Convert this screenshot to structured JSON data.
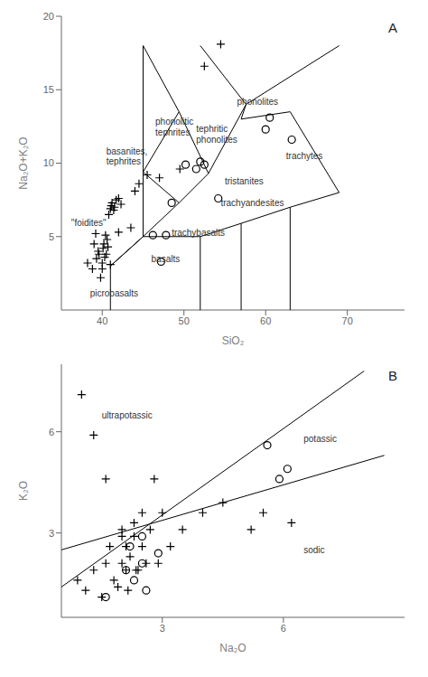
{
  "chart_data": [
    {
      "type": "scatter",
      "title": "A",
      "xlabel": "SiO₂",
      "ylabel": "Na₂O+K₂O",
      "xlim": [
        35,
        77
      ],
      "ylim": [
        0,
        20
      ],
      "xticks": [
        40,
        50,
        60,
        70
      ],
      "yticks": [
        5,
        10,
        15,
        20
      ],
      "grid": false,
      "series": [
        {
          "type": "scatter",
          "marker": "plus",
          "color": "#000000",
          "x": [
            38.2,
            38.8,
            39.0,
            39.2,
            39.3,
            39.5,
            39.6,
            39.8,
            40.0,
            40.0,
            40.1,
            40.2,
            40.3,
            40.4,
            40.5,
            40.6,
            40.7,
            40.8,
            41.0,
            41.0,
            41.1,
            41.2,
            41.4,
            41.5,
            41.7,
            42.0,
            42.0,
            42.3,
            43.5,
            44.0,
            44.5,
            45.5,
            47.0,
            49.5,
            52.5,
            54.5
          ],
          "y": [
            3.2,
            2.8,
            4.5,
            5.2,
            3.5,
            4.0,
            3.8,
            2.2,
            2.8,
            3.2,
            4.2,
            4.5,
            3.6,
            5.1,
            3.8,
            4.8,
            4.3,
            6.5,
            3.1,
            6.9,
            7.1,
            7.3,
            6.8,
            7.0,
            7.5,
            5.3,
            7.6,
            7.2,
            5.6,
            8.1,
            8.6,
            9.2,
            9.0,
            9.6,
            16.6,
            18.1
          ]
        },
        {
          "type": "scatter",
          "marker": "circle",
          "color": "#000000",
          "x": [
            46.2,
            47.8,
            48.5,
            50.2,
            51.5,
            52.0,
            52.5,
            54.2,
            60.0,
            60.5,
            63.2,
            47.2
          ],
          "y": [
            5.1,
            5.1,
            7.3,
            9.9,
            9.6,
            10.1,
            9.9,
            7.6,
            12.3,
            13.1,
            11.6,
            3.3
          ]
        },
        {
          "type": "line",
          "color": "#000000",
          "x": [
            41,
            41,
            45,
            45
          ],
          "y": [
            0,
            3,
            5,
            18
          ]
        },
        {
          "type": "line",
          "color": "#000000",
          "x": [
            41,
            45,
            52
          ],
          "y": [
            3,
            5,
            5
          ]
        },
        {
          "type": "line",
          "color": "#000000",
          "x": [
            52,
            52
          ],
          "y": [
            5,
            0
          ]
        },
        {
          "type": "line",
          "color": "#000000",
          "x": [
            52,
            57,
            63,
            69
          ],
          "y": [
            5,
            5.9,
            7,
            8
          ]
        },
        {
          "type": "line",
          "color": "#000000",
          "x": [
            57,
            57
          ],
          "y": [
            5.9,
            0
          ]
        },
        {
          "type": "line",
          "color": "#000000",
          "x": [
            63,
            63
          ],
          "y": [
            7,
            0
          ]
        },
        {
          "type": "line",
          "color": "#000000",
          "x": [
            45,
            49.4,
            45
          ],
          "y": [
            5,
            7.3,
            9.4
          ]
        },
        {
          "type": "line",
          "color": "#000000",
          "x": [
            49.4,
            53.0
          ],
          "y": [
            7.3,
            9.3
          ]
        },
        {
          "type": "line",
          "color": "#000000",
          "x": [
            45,
            49.4,
            45
          ],
          "y": [
            9.4,
            13.5,
            18
          ]
        },
        {
          "type": "line",
          "color": "#000000",
          "x": [
            49.4,
            53.0
          ],
          "y": [
            13.5,
            9.3
          ]
        },
        {
          "type": "line",
          "color": "#000000",
          "x": [
            53.0,
            57.6,
            52
          ],
          "y": [
            9.3,
            14.0,
            18
          ]
        },
        {
          "type": "line",
          "color": "#000000",
          "x": [
            57.6,
            57,
            63,
            69
          ],
          "y": [
            14.0,
            13,
            13.5,
            8
          ]
        },
        {
          "type": "line",
          "color": "#000000",
          "x": [
            57.6,
            69
          ],
          "y": [
            14.0,
            18
          ]
        }
      ],
      "annotations": [
        {
          "text": "picrobasalts",
          "x": 38.5,
          "y": 1.2
        },
        {
          "text": "basalts",
          "x": 46.0,
          "y": 3.5
        },
        {
          "text": "trachybasalts",
          "x": 48.5,
          "y": 5.3
        },
        {
          "text": "trachyandesites",
          "x": 54.5,
          "y": 7.3
        },
        {
          "text": "tristanites",
          "x": 55.0,
          "y": 8.8
        },
        {
          "text": "trachytes",
          "x": 62.5,
          "y": 10.5
        },
        {
          "text": "basanites,\ntephrites",
          "x": 40.5,
          "y": 10.5
        },
        {
          "text": "phonolitic\ntephrites",
          "x": 46.5,
          "y": 12.5
        },
        {
          "text": "tephritic\nphonolites",
          "x": 51.5,
          "y": 12.0
        },
        {
          "text": "phonolites",
          "x": 56.5,
          "y": 14.2
        },
        {
          "text": "\"foidites\"",
          "x": 36.2,
          "y": 6.0
        }
      ]
    },
    {
      "type": "scatter",
      "title": "B",
      "xlabel": "Na₂O",
      "ylabel": "K₂O",
      "xlim": [
        0.5,
        9
      ],
      "ylim": [
        0.5,
        8
      ],
      "xticks": [
        3,
        6
      ],
      "yticks": [
        3,
        6
      ],
      "grid": false,
      "series": [
        {
          "type": "scatter",
          "marker": "plus",
          "color": "#000000",
          "x": [
            0.9,
            1.1,
            1.3,
            1.5,
            1.6,
            1.7,
            1.8,
            1.9,
            2.0,
            2.0,
            2.0,
            2.1,
            2.1,
            2.15,
            2.2,
            2.3,
            2.3,
            2.35,
            2.4,
            2.5,
            2.5,
            2.6,
            2.7,
            2.8,
            2.9,
            3.0,
            3.2,
            3.5,
            4.0,
            4.5,
            5.2,
            5.5,
            6.2,
            1.0,
            1.3,
            1.6
          ],
          "y": [
            1.6,
            1.3,
            1.9,
            1.1,
            2.1,
            2.6,
            1.6,
            1.4,
            2.1,
            2.9,
            3.1,
            1.9,
            2.6,
            1.3,
            2.3,
            3.3,
            2.9,
            1.9,
            1.9,
            2.6,
            3.6,
            2.1,
            3.1,
            4.6,
            2.1,
            3.6,
            2.6,
            3.1,
            3.6,
            3.9,
            3.1,
            3.6,
            3.3,
            7.1,
            5.9,
            4.6
          ]
        },
        {
          "type": "scatter",
          "marker": "circle",
          "color": "#000000",
          "x": [
            1.6,
            2.1,
            2.2,
            2.3,
            2.5,
            2.5,
            2.6,
            2.9,
            5.6,
            5.9,
            6.1
          ],
          "y": [
            1.1,
            1.9,
            2.6,
            1.6,
            2.1,
            2.9,
            1.3,
            2.4,
            5.6,
            4.6,
            4.9
          ]
        },
        {
          "type": "line",
          "color": "#000000",
          "x": [
            0.5,
            8.0
          ],
          "y": [
            1.4,
            7.8
          ]
        },
        {
          "type": "line",
          "color": "#000000",
          "x": [
            0.5,
            8.5
          ],
          "y": [
            2.5,
            5.3
          ]
        }
      ],
      "annotations": [
        {
          "text": "ultrapotassic",
          "x": 1.5,
          "y": 6.5
        },
        {
          "text": "potassic",
          "x": 6.5,
          "y": 5.8
        },
        {
          "text": "sodic",
          "x": 6.5,
          "y": 2.5
        }
      ]
    }
  ]
}
